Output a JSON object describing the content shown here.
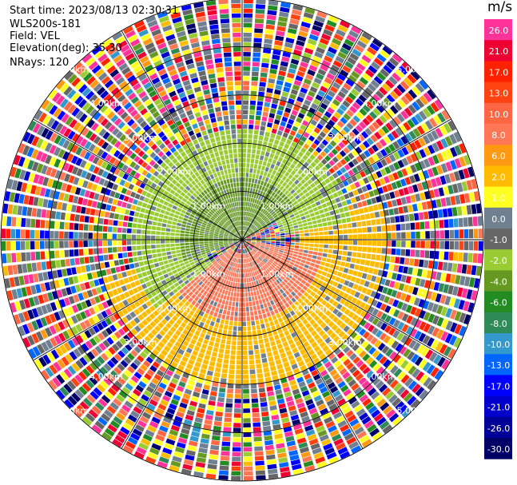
{
  "info": {
    "start_time": "Start time: 2023/08/13 02:30:31",
    "station": "WLS200s-181",
    "field": "Field: VEL",
    "elevation": "Elevation(deg): 35.30",
    "nrays": "NRays: 120"
  },
  "colorbar": {
    "unit": "m/s",
    "tick_labels": [
      "26.0",
      "21.0",
      "17.0",
      "13.0",
      "10.0",
      "8.0",
      "6.0",
      "2.0",
      "1.0",
      "0.0",
      "-1.0",
      "-2.0",
      "-4.0",
      "-6.0",
      "-8.0",
      "-10.0",
      "-13.0",
      "-17.0",
      "-21.0",
      "-26.0",
      "-30.0"
    ],
    "colors": [
      "#ff3399",
      "#ee0033",
      "#ff2200",
      "#ff4411",
      "#ff6644",
      "#ff7755",
      "#ff9911",
      "#ffbb00",
      "#ffff22",
      "#708090",
      "#666666",
      "#99cc33",
      "#669922",
      "#228b22",
      "#2e8b57",
      "#3399cc",
      "#0066ff",
      "#0000ff",
      "#0000cc",
      "#000099",
      "#000066"
    ]
  },
  "chart_data": {
    "type": "heatmap",
    "projection": "polar PPI",
    "field": "VEL",
    "units": "m/s",
    "n_rays": 120,
    "range_ring_labels": [
      "1.00km",
      "2.00km",
      "3.00km",
      "4.00km",
      "5.00km"
    ],
    "range_rings_km": [
      1,
      2,
      3,
      4,
      5
    ],
    "max_range_km": 5.0,
    "spoke_azimuths_deg": [
      0,
      30,
      60,
      90,
      120,
      150,
      180,
      210,
      240,
      270,
      300,
      330
    ],
    "regions": [
      {
        "description": "inner ring toward north-west",
        "range_km": [
          0,
          1.3
        ],
        "azimuth_deg": [
          250,
          60
        ],
        "velocity_ms": -6.0
      },
      {
        "description": "middle ring toward north",
        "range_km": [
          0.8,
          2.3
        ],
        "azimuth_deg": [
          230,
          80
        ],
        "velocity_ms": -4.0
      },
      {
        "description": "inner ring toward south",
        "range_km": [
          0.3,
          1.7
        ],
        "azimuth_deg": [
          100,
          235
        ],
        "velocity_ms": 6.0
      },
      {
        "description": "outer band toward south",
        "range_km": [
          1.2,
          3.0
        ],
        "azimuth_deg": [
          75,
          255
        ],
        "velocity_ms": 1.5
      },
      {
        "description": "beyond ~3 km",
        "range_km": [
          3.0,
          5.0
        ],
        "azimuth_deg": [
          0,
          360
        ],
        "velocity_ms": null
      }
    ]
  }
}
